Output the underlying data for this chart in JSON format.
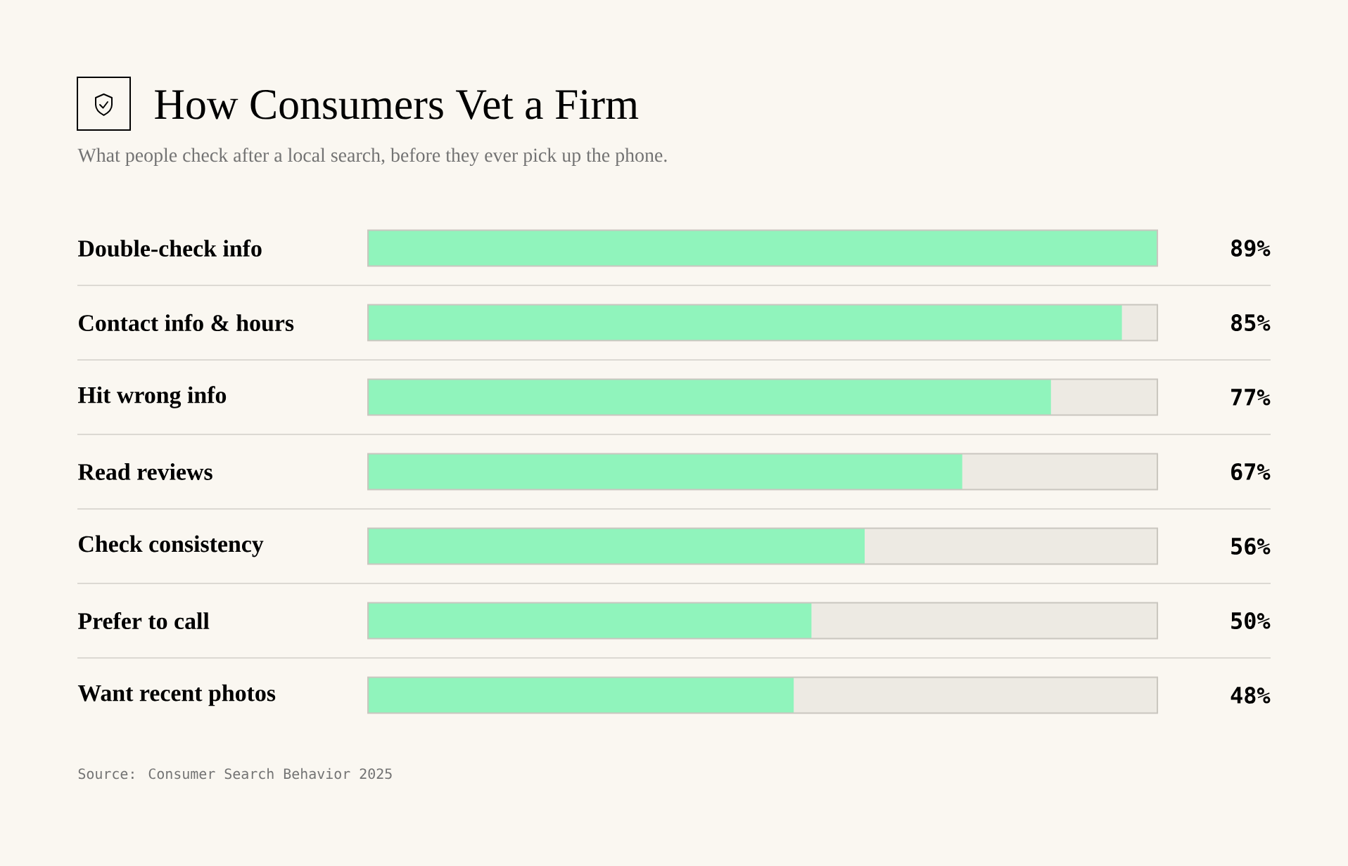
{
  "chart_data": {
    "type": "bar",
    "orientation": "horizontal",
    "title": "How Consumers Vet a Firm",
    "subtitle": "What people check after a local search, before they ever pick up the phone.",
    "categories": [
      "Double-check info",
      "Contact info & hours",
      "Hit wrong info",
      "Read reviews",
      "Check consistency",
      "Prefer to call",
      "Want recent photos"
    ],
    "values": [
      89,
      85,
      77,
      67,
      56,
      50,
      48
    ],
    "value_labels": [
      "89%",
      "85%",
      "77%",
      "67%",
      "56%",
      "50%",
      "48%"
    ],
    "color": "#90f4bc",
    "xlim": [
      0,
      89
    ],
    "tick_labels": false,
    "annotations": [
      "Source: Consumer Search Behavior 2025"
    ]
  }
}
